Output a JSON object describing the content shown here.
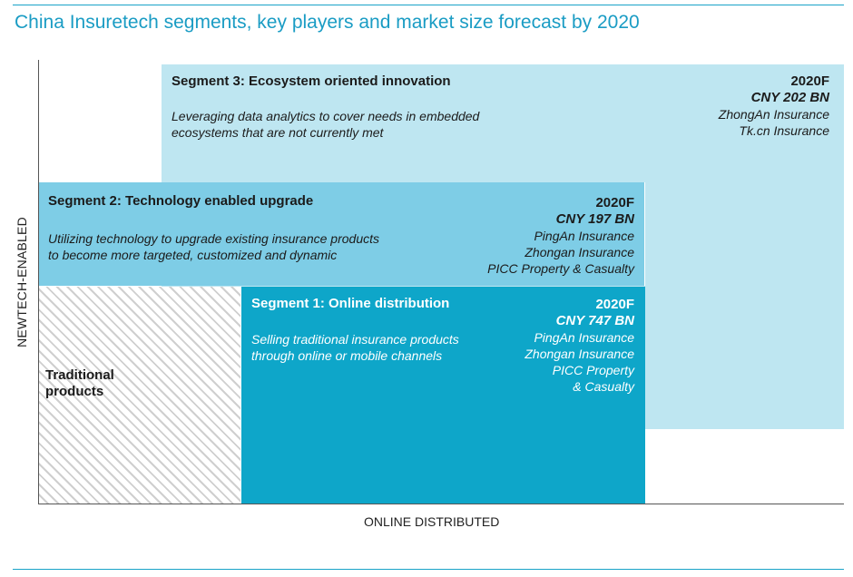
{
  "title": "China Insuretech segments, key players and market size forecast by 2020",
  "axes": {
    "y_label": "NEWTECH-ENABLED",
    "x_label": "ONLINE DISTRIBUTED"
  },
  "segment3": {
    "heading": "Segment 3: Ecosystem oriented innovation",
    "description_lines": [
      "Leveraging data analytics to cover needs in embedded",
      "ecosystems that are not currently met"
    ],
    "forecast_year": "2020F",
    "market_size": "CNY 202 BN",
    "players": [
      "ZhongAn Insurance",
      "Tk.cn Insurance"
    ],
    "color": "#bee6f1"
  },
  "segment2": {
    "heading": "Segment 2: Technology enabled upgrade",
    "description_lines": [
      "Utilizing technology to upgrade existing insurance products",
      "to become more targeted, customized and dynamic"
    ],
    "forecast_year": "2020F",
    "market_size": "CNY 197 BN",
    "players": [
      "PingAn Insurance",
      "Zhongan Insurance",
      "PICC Property & Casualty"
    ],
    "color": "#7ecde6"
  },
  "segment1": {
    "heading": "Segment 1: Online distribution",
    "description_lines": [
      "Selling traditional insurance products",
      "through online or mobile channels"
    ],
    "forecast_year": "2020F",
    "market_size": "CNY 747 BN",
    "players": [
      "PingAn Insurance",
      "Zhongan Insurance",
      "PICC Property",
      "& Casualty"
    ],
    "color": "#0ea6c9"
  },
  "traditional": {
    "label_lines": [
      "Traditional",
      "products"
    ]
  }
}
